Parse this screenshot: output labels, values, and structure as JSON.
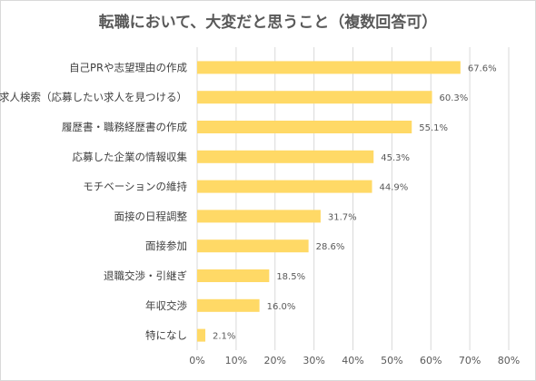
{
  "chart_data": {
    "type": "bar",
    "orientation": "horizontal",
    "title": "転職において、大変だと思うこと（複数回答可）",
    "categories": [
      "自己PRや志望理由の作成",
      "求人検索（応募したい求人を見つける）",
      "履歴書・職務経歴書の作成",
      "応募した企業の情報収集",
      "モチベーションの維持",
      "面接の日程調整",
      "面接参加",
      "退職交渉・引継ぎ",
      "年収交渉",
      "特になし"
    ],
    "values": [
      67.6,
      60.3,
      55.1,
      45.3,
      44.9,
      31.7,
      28.6,
      18.5,
      16.0,
      2.1
    ],
    "value_labels": [
      "67.6%",
      "60.3%",
      "55.1%",
      "45.3%",
      "44.9%",
      "31.7%",
      "28.6%",
      "18.5%",
      "16.0%",
      "2.1%"
    ],
    "xlim": [
      0,
      80
    ],
    "x_ticks": [
      0,
      10,
      20,
      30,
      40,
      50,
      60,
      70,
      80
    ],
    "x_tick_labels": [
      "0%",
      "10%",
      "20%",
      "30%",
      "40%",
      "50%",
      "60%",
      "70%",
      "80%"
    ],
    "grid": "vertical",
    "bar_color": "#FFD966",
    "grid_color": "#D9D9D9"
  }
}
